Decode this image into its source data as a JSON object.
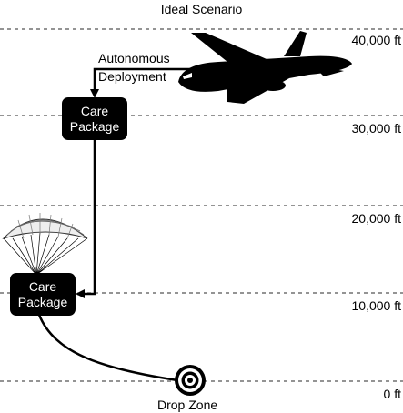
{
  "title": "Ideal Scenario",
  "altitudes": [
    "40,000 ft",
    "30,000 ft",
    "20,000 ft",
    "10,000 ft",
    "0 ft"
  ],
  "deployment_label": [
    "Autonomous",
    "Deployment"
  ],
  "care_package_top": [
    "Care",
    "Package"
  ],
  "care_package_bottom": [
    "Care",
    "Package"
  ],
  "drop_zone_label": "Drop Zone"
}
